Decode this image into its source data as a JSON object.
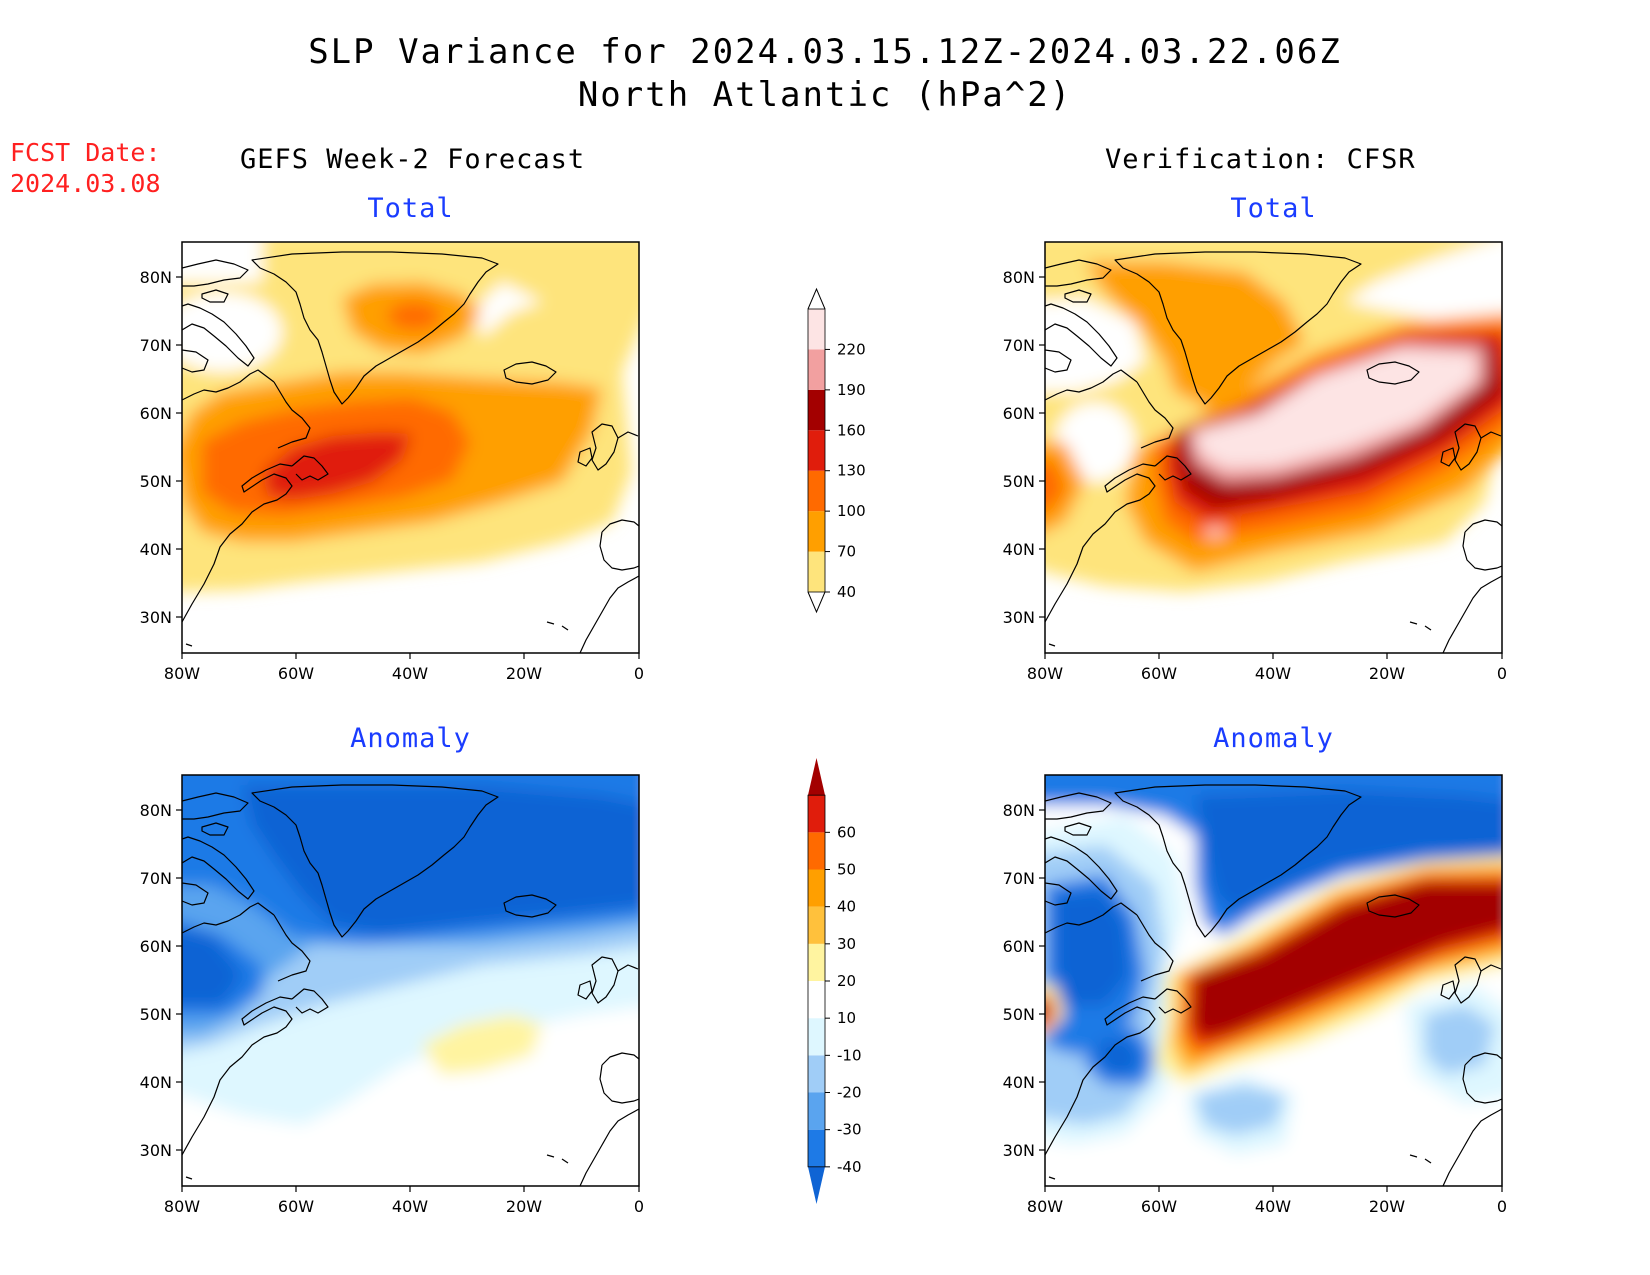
{
  "header": {
    "title_line1": "SLP Variance for 2024.03.15.12Z-2024.03.22.06Z",
    "title_line2": "North Atlantic (hPa^2)"
  },
  "forecast_date": {
    "label": "FCST Date:",
    "value": "2024.03.08"
  },
  "columns": {
    "left_title": "GEFS Week-2 Forecast",
    "right_title": "Verification: CFSR"
  },
  "panels": [
    {
      "id": "gefs-total",
      "subtitle": "Total",
      "field": "total"
    },
    {
      "id": "cfsr-total",
      "subtitle": "Total",
      "field": "total"
    },
    {
      "id": "gefs-anomaly",
      "subtitle": "Anomaly",
      "field": "anomaly"
    },
    {
      "id": "cfsr-anomaly",
      "subtitle": "Anomaly",
      "field": "anomaly"
    }
  ],
  "axes": {
    "lat_labels": [
      "80N",
      "70N",
      "60N",
      "50N",
      "40N",
      "30N"
    ],
    "lon_labels": [
      "80W",
      "60W",
      "40W",
      "20W",
      "0"
    ]
  },
  "colorbars": {
    "total": {
      "levels": [
        "40",
        "70",
        "100",
        "130",
        "160",
        "190",
        "220"
      ],
      "colors": [
        "#fee47c",
        "#ff9f00",
        "#ff6a00",
        "#e01d0c",
        "#a30000",
        "#f2a0a0",
        "#fde4e4"
      ]
    },
    "anomaly": {
      "levels": [
        "-40",
        "-30",
        "-20",
        "-10",
        "10",
        "20",
        "30",
        "40",
        "50",
        "60"
      ],
      "colors": [
        "#0f64d4",
        "#1e7ae6",
        "#5aa4ef",
        "#a0cdf7",
        "#def7ff",
        "#ffffff",
        "#fff4a0",
        "#ffc13c",
        "#ff9f00",
        "#ff6a00",
        "#e01d0c",
        "#a30000"
      ]
    }
  }
}
